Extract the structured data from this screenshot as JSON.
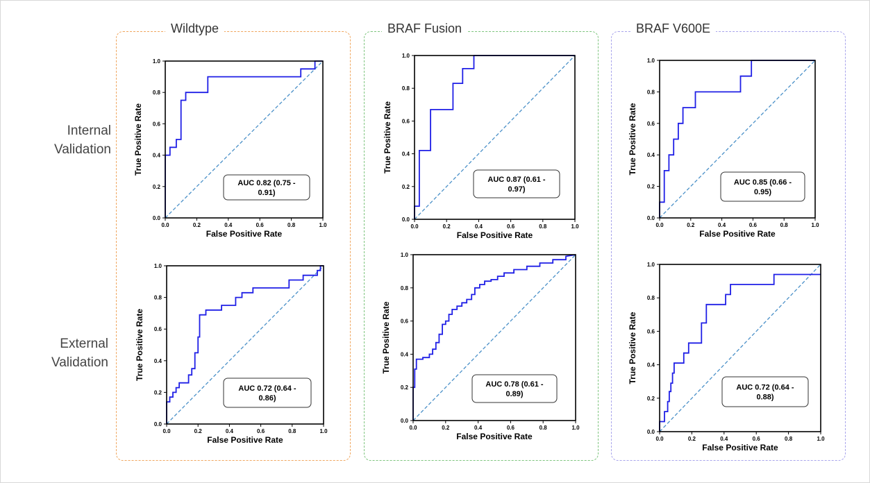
{
  "figure": {
    "columns": [
      {
        "label": "Wildtype",
        "color": "#f0a65e"
      },
      {
        "label": "BRAF Fusion",
        "color": "#7dc47d"
      },
      {
        "label": "BRAF V600E",
        "color": "#a8a4ec"
      }
    ],
    "rows": [
      {
        "label_line1": "Internal",
        "label_line2": "Validation"
      },
      {
        "label_line1": "External",
        "label_line2": "Validation"
      }
    ]
  },
  "chart_data": [
    {
      "type": "line",
      "column": "Wildtype",
      "row": "Internal Validation",
      "xlabel": "False Positive Rate",
      "ylabel": "True Positive Rate",
      "xlim": [
        0,
        1
      ],
      "ylim": [
        0,
        1
      ],
      "xticks": [
        "0.0",
        "0.2",
        "0.4",
        "0.6",
        "0.8",
        "1.0"
      ],
      "yticks": [
        "0.0",
        "0.2",
        "0.4",
        "0.6",
        "0.8",
        "1.0"
      ],
      "auc_line1": "AUC  0.82 (0.75 -",
      "auc_line2": "0.91)",
      "roc_x": [
        0,
        0,
        0.03,
        0.03,
        0.07,
        0.07,
        0.1,
        0.1,
        0.13,
        0.13,
        0.16,
        0.16,
        0.27,
        0.27,
        0.86,
        0.86,
        0.95,
        0.95,
        1
      ],
      "roc_y": [
        0,
        0.4,
        0.4,
        0.45,
        0.45,
        0.5,
        0.5,
        0.75,
        0.75,
        0.8,
        0.8,
        0.8,
        0.8,
        0.9,
        0.9,
        0.95,
        0.95,
        1,
        1
      ]
    },
    {
      "type": "line",
      "column": "BRAF Fusion",
      "row": "Internal Validation",
      "xlabel": "False Positive Rate",
      "ylabel": "True Positive Rate",
      "xlim": [
        0,
        1
      ],
      "ylim": [
        0,
        1
      ],
      "xticks": [
        "0.0",
        "0.2",
        "0.4",
        "0.6",
        "0.8",
        "1.0"
      ],
      "yticks": [
        "0.0",
        "0.2",
        "0.4",
        "0.6",
        "0.8",
        "1.0"
      ],
      "auc_line1": "AUC  0.87 (0.61 -",
      "auc_line2": "0.97)",
      "roc_x": [
        0,
        0,
        0.03,
        0.03,
        0.1,
        0.1,
        0.24,
        0.24,
        0.3,
        0.3,
        0.37,
        0.37,
        1
      ],
      "roc_y": [
        0,
        0.08,
        0.08,
        0.42,
        0.42,
        0.67,
        0.67,
        0.83,
        0.83,
        0.92,
        0.92,
        1,
        1
      ]
    },
    {
      "type": "line",
      "column": "BRAF V600E",
      "row": "Internal Validation",
      "xlabel": "False Positive Rate",
      "ylabel": "True Positive Rate",
      "xlim": [
        0,
        1
      ],
      "ylim": [
        0,
        1
      ],
      "xticks": [
        "0.0",
        "0.2",
        "0.4",
        "0.6",
        "0.8",
        "1.0"
      ],
      "yticks": [
        "0.0",
        "0.2",
        "0.4",
        "0.6",
        "0.8",
        "1.0"
      ],
      "auc_line1": "AUC  0.85 (0.66 -",
      "auc_line2": "0.95)",
      "roc_x": [
        0,
        0,
        0.03,
        0.03,
        0.06,
        0.06,
        0.09,
        0.09,
        0.12,
        0.12,
        0.15,
        0.15,
        0.18,
        0.18,
        0.23,
        0.23,
        0.52,
        0.52,
        0.59,
        0.59,
        1
      ],
      "roc_y": [
        0,
        0.1,
        0.1,
        0.3,
        0.3,
        0.4,
        0.4,
        0.5,
        0.5,
        0.6,
        0.6,
        0.7,
        0.7,
        0.7,
        0.7,
        0.8,
        0.8,
        0.9,
        0.9,
        1,
        1
      ]
    },
    {
      "type": "line",
      "column": "Wildtype",
      "row": "External Validation",
      "xlabel": "False Positive Rate",
      "ylabel": "True Positive Rate",
      "xlim": [
        0,
        1
      ],
      "ylim": [
        0,
        1
      ],
      "xticks": [
        "0.0",
        "0.2",
        "0.4",
        "0.6",
        "0.8",
        "1.0"
      ],
      "yticks": [
        "0.0",
        "0.2",
        "0.4",
        "0.6",
        "0.8",
        "1.0"
      ],
      "auc_line1": "AUC  0.72 (0.64 -",
      "auc_line2": "0.86)",
      "roc_x": [
        0,
        0,
        0.02,
        0.02,
        0.04,
        0.04,
        0.06,
        0.06,
        0.08,
        0.08,
        0.14,
        0.14,
        0.16,
        0.16,
        0.18,
        0.18,
        0.2,
        0.2,
        0.21,
        0.21,
        0.25,
        0.25,
        0.35,
        0.35,
        0.44,
        0.44,
        0.48,
        0.48,
        0.55,
        0.55,
        0.78,
        0.78,
        0.87,
        0.87,
        0.96,
        0.96,
        0.98,
        0.98,
        1
      ],
      "roc_y": [
        0,
        0.14,
        0.14,
        0.17,
        0.17,
        0.2,
        0.2,
        0.23,
        0.23,
        0.26,
        0.26,
        0.31,
        0.31,
        0.35,
        0.35,
        0.45,
        0.45,
        0.55,
        0.55,
        0.69,
        0.69,
        0.72,
        0.72,
        0.75,
        0.75,
        0.8,
        0.8,
        0.83,
        0.83,
        0.86,
        0.86,
        0.91,
        0.91,
        0.94,
        0.94,
        0.97,
        0.97,
        1,
        1
      ]
    },
    {
      "type": "line",
      "column": "BRAF Fusion",
      "row": "External Validation",
      "xlabel": "False Positive Rate",
      "ylabel": "True Positive Rate",
      "xlim": [
        0,
        1
      ],
      "ylim": [
        0,
        1
      ],
      "xticks": [
        "0.0",
        "0.2",
        "0.4",
        "0.6",
        "0.8",
        "1.0"
      ],
      "yticks": [
        "0.0",
        "0.2",
        "0.4",
        "0.6",
        "0.8",
        "1.0"
      ],
      "auc_line1": "AUC  0.78 (0.61 -",
      "auc_line2": "0.89)",
      "roc_x": [
        0,
        0,
        0.01,
        0.01,
        0.02,
        0.02,
        0.06,
        0.06,
        0.1,
        0.1,
        0.12,
        0.12,
        0.14,
        0.14,
        0.16,
        0.16,
        0.18,
        0.18,
        0.2,
        0.2,
        0.22,
        0.22,
        0.24,
        0.24,
        0.27,
        0.27,
        0.3,
        0.3,
        0.33,
        0.33,
        0.36,
        0.36,
        0.38,
        0.38,
        0.41,
        0.41,
        0.44,
        0.44,
        0.48,
        0.48,
        0.52,
        0.52,
        0.56,
        0.56,
        0.62,
        0.62,
        0.7,
        0.7,
        0.78,
        0.78,
        0.86,
        0.86,
        0.94,
        0.94,
        1
      ],
      "roc_y": [
        0,
        0.2,
        0.2,
        0.31,
        0.31,
        0.37,
        0.37,
        0.38,
        0.38,
        0.4,
        0.4,
        0.43,
        0.43,
        0.47,
        0.47,
        0.52,
        0.52,
        0.58,
        0.58,
        0.6,
        0.6,
        0.64,
        0.64,
        0.67,
        0.67,
        0.69,
        0.69,
        0.71,
        0.71,
        0.73,
        0.73,
        0.76,
        0.76,
        0.8,
        0.8,
        0.82,
        0.82,
        0.84,
        0.84,
        0.85,
        0.85,
        0.87,
        0.87,
        0.89,
        0.89,
        0.91,
        0.91,
        0.93,
        0.93,
        0.95,
        0.95,
        0.97,
        0.97,
        0.99,
        1
      ]
    },
    {
      "type": "line",
      "column": "BRAF V600E",
      "row": "External Validation",
      "xlabel": "False Positive Rate",
      "ylabel": "True Positive Rate",
      "xlim": [
        0,
        1
      ],
      "ylim": [
        0,
        1
      ],
      "xticks": [
        "0.0",
        "0.2",
        "0.4",
        "0.6",
        "0.8",
        "1.0"
      ],
      "yticks": [
        "0.0",
        "0.2",
        "0.4",
        "0.6",
        "0.8",
        "1.0"
      ],
      "auc_line1": "AUC  0.72 (0.64 -",
      "auc_line2": "0.88)",
      "roc_x": [
        0,
        0,
        0.03,
        0.03,
        0.05,
        0.05,
        0.06,
        0.06,
        0.07,
        0.07,
        0.08,
        0.08,
        0.09,
        0.09,
        0.1,
        0.1,
        0.15,
        0.15,
        0.18,
        0.18,
        0.21,
        0.21,
        0.26,
        0.26,
        0.29,
        0.29,
        0.41,
        0.41,
        0.44,
        0.44,
        0.47,
        0.47,
        0.71,
        0.71,
        1
      ],
      "roc_y": [
        0,
        0.06,
        0.06,
        0.12,
        0.12,
        0.18,
        0.18,
        0.24,
        0.24,
        0.29,
        0.29,
        0.35,
        0.35,
        0.41,
        0.41,
        0.41,
        0.41,
        0.47,
        0.47,
        0.53,
        0.53,
        0.53,
        0.53,
        0.65,
        0.65,
        0.76,
        0.76,
        0.82,
        0.82,
        0.88,
        0.88,
        0.88,
        0.88,
        0.94,
        0.94
      ]
    }
  ]
}
